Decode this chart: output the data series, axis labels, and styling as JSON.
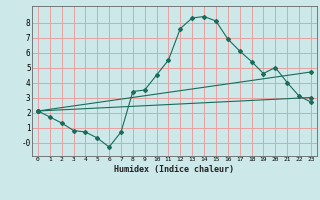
{
  "xlabel": "Humidex (Indice chaleur)",
  "ylabel": "",
  "bg_color": "#cce8e8",
  "grid_color": "#e8a0a0",
  "line_color": "#1a6b5a",
  "xlim": [
    -0.5,
    23.5
  ],
  "ylim": [
    -0.9,
    9.1
  ],
  "xticks": [
    0,
    1,
    2,
    3,
    4,
    5,
    6,
    7,
    8,
    9,
    10,
    11,
    12,
    13,
    14,
    15,
    16,
    17,
    18,
    19,
    20,
    21,
    22,
    23
  ],
  "yticks": [
    0,
    1,
    2,
    3,
    4,
    5,
    6,
    7,
    8
  ],
  "ytick_labels": [
    "-0",
    "1",
    "2",
    "3",
    "4",
    "5",
    "6",
    "7",
    "8"
  ],
  "line1_x": [
    0,
    1,
    2,
    3,
    4,
    5,
    6,
    7,
    8,
    9,
    10,
    11,
    12,
    13,
    14,
    15,
    16,
    17,
    18,
    19,
    20,
    21,
    22,
    23
  ],
  "line1_y": [
    2.1,
    1.7,
    1.3,
    0.8,
    0.7,
    0.3,
    -0.3,
    0.7,
    3.4,
    3.5,
    4.5,
    5.5,
    7.6,
    8.3,
    8.4,
    8.1,
    6.9,
    6.1,
    5.4,
    4.6,
    5.0,
    4.0,
    3.1,
    2.7
  ],
  "line2_x": [
    0,
    23
  ],
  "line2_y": [
    2.1,
    3.0
  ],
  "line3_x": [
    0,
    23
  ],
  "line3_y": [
    2.1,
    4.7
  ]
}
